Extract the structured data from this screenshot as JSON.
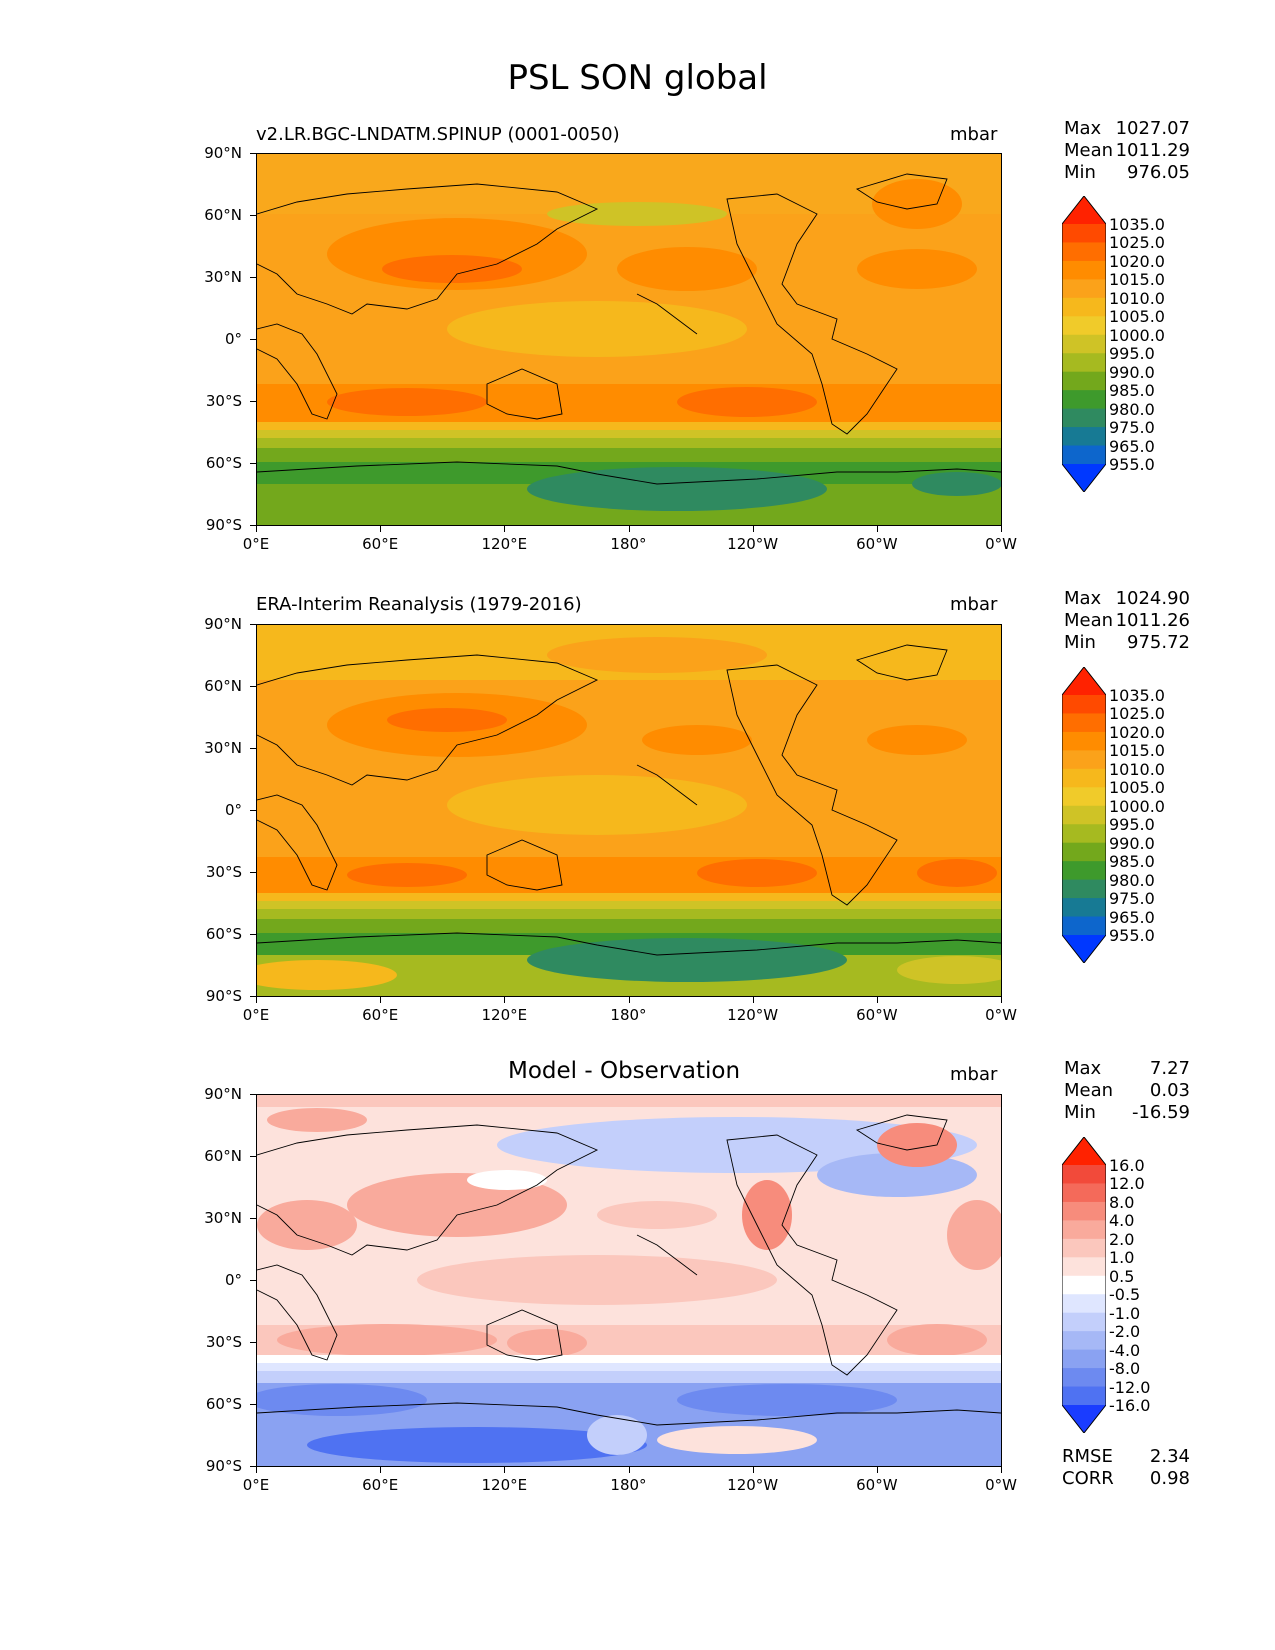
{
  "figure_title": "PSL SON global",
  "ylabels": [
    "90°N",
    "60°N",
    "30°N",
    "0°",
    "30°S",
    "60°S",
    "90°S"
  ],
  "xlabels": [
    "0°E",
    "60°E",
    "120°E",
    "180°",
    "120°W",
    "60°W",
    "0°W"
  ],
  "panels": [
    {
      "title": "v2.LR.BGC-LNDATM.SPINUP (0001-0050)",
      "units": "mbar",
      "stats": [
        {
          "label": "Max",
          "value": "1027.07"
        },
        {
          "label": "Mean",
          "value": "1011.29"
        },
        {
          "label": "Min",
          "value": "976.05"
        }
      ],
      "colorbar": {
        "labels": [
          "1035.0",
          "1025.0",
          "1020.0",
          "1015.0",
          "1010.0",
          "1005.0",
          "1000.0",
          "995.0",
          "990.0",
          "985.0",
          "980.0",
          "975.0",
          "965.0",
          "955.0"
        ],
        "colors": [
          "#ff2200",
          "#ff4a00",
          "#ff6e00",
          "#ff8c00",
          "#fba21a",
          "#f6b81c",
          "#f0cb2a",
          "#cfc326",
          "#a6ba20",
          "#73a81c",
          "#3e9a2c",
          "#2f8a60",
          "#177a94",
          "#0d66cc",
          "#0038ff"
        ]
      }
    },
    {
      "title": "ERA-Interim Reanalysis (1979-2016)",
      "units": "mbar",
      "stats": [
        {
          "label": "Max",
          "value": "1024.90"
        },
        {
          "label": "Mean",
          "value": "1011.26"
        },
        {
          "label": "Min",
          "value": "975.72"
        }
      ],
      "colorbar": {
        "labels": [
          "1035.0",
          "1025.0",
          "1020.0",
          "1015.0",
          "1010.0",
          "1005.0",
          "1000.0",
          "995.0",
          "990.0",
          "985.0",
          "980.0",
          "975.0",
          "965.0",
          "955.0"
        ],
        "colors": [
          "#ff2200",
          "#ff4a00",
          "#ff6e00",
          "#ff8c00",
          "#fba21a",
          "#f6b81c",
          "#f0cb2a",
          "#cfc326",
          "#a6ba20",
          "#73a81c",
          "#3e9a2c",
          "#2f8a60",
          "#177a94",
          "#0d66cc",
          "#0038ff"
        ]
      }
    },
    {
      "title": "Model - Observation",
      "units": "mbar",
      "stats": [
        {
          "label": "Max",
          "value": "7.27"
        },
        {
          "label": "Mean",
          "value": "0.03"
        },
        {
          "label": "Min",
          "value": "-16.59"
        }
      ],
      "colorbar": {
        "labels": [
          "16.0",
          "12.0",
          "8.0",
          "4.0",
          "2.0",
          "1.0",
          "0.5",
          "-0.5",
          "-1.0",
          "-2.0",
          "-4.0",
          "-8.0",
          "-12.0",
          "-16.0"
        ],
        "colors": [
          "#ff2200",
          "#f24a3a",
          "#f46a5a",
          "#f78c7c",
          "#f9aa9c",
          "#fbc7bd",
          "#fde2dc",
          "#ffffff",
          "#dfe6ff",
          "#c3cffb",
          "#a6b8f6",
          "#8aa2f2",
          "#6d8af0",
          "#4f72f2",
          "#1a3cff"
        ]
      },
      "metrics": [
        {
          "label": "RMSE",
          "value": "2.34"
        },
        {
          "label": "CORR",
          "value": "0.98"
        }
      ]
    }
  ]
}
